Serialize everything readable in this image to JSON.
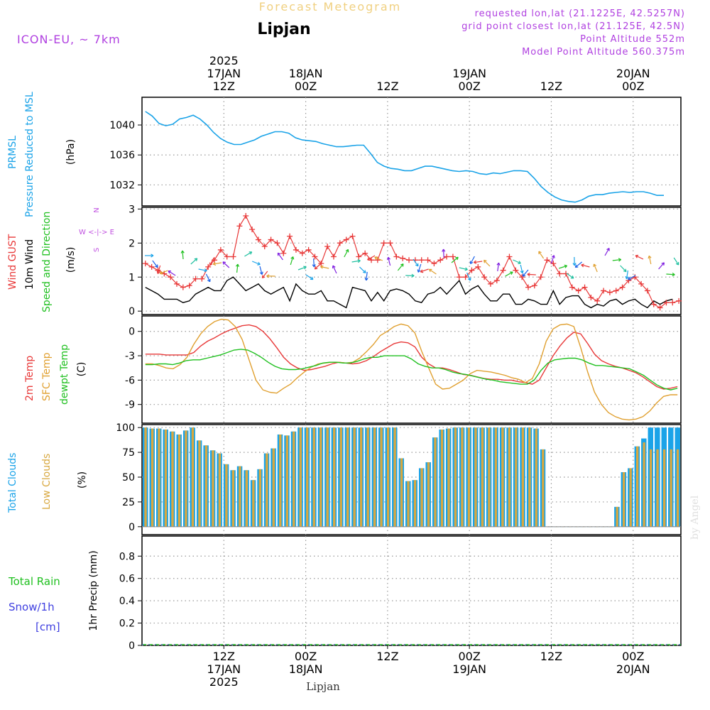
{
  "header": {
    "product": "Forecast Meteogram",
    "location": "Lipjan",
    "model": "ICON-EU, ~ 7km",
    "requested": "requested lon,lat (21.1225E, 42.5257N)",
    "gridpoint": "grid point closest lon,lat (21.125E, 42.5N)",
    "point_alt": "Point Altitude 552m",
    "model_alt": "Model Point Altitude 560.375m",
    "footer_location": "Lipjan",
    "watermark": "by Angel"
  },
  "time_axis": {
    "ticks": [
      {
        "h": 12,
        "top": [
          "2025",
          "17JAN",
          "12Z"
        ],
        "bottom": [
          "12Z",
          "17JAN",
          "2025"
        ]
      },
      {
        "h": 24,
        "top": [
          "18JAN",
          "00Z"
        ],
        "bottom": [
          "00Z",
          "18JAN"
        ]
      },
      {
        "h": 36,
        "top": [
          "12Z"
        ],
        "bottom": [
          "12Z"
        ]
      },
      {
        "h": 48,
        "top": [
          "19JAN",
          "00Z"
        ],
        "bottom": [
          "00Z",
          "19JAN"
        ]
      },
      {
        "h": 60,
        "top": [
          "12Z"
        ],
        "bottom": [
          "12Z"
        ]
      },
      {
        "h": 72,
        "top": [
          "20JAN",
          "00Z"
        ],
        "bottom": [
          "00Z",
          "20JAN"
        ]
      }
    ]
  },
  "panels": {
    "pressure": {
      "labels": [
        "PRMSL",
        "Pressure Reduced to MSL"
      ],
      "unit": "(hPa)",
      "ticks": [
        "1040",
        "1036",
        "1032"
      ]
    },
    "wind": {
      "labels": [
        "Wind GUST",
        "10m Wind",
        "Speed and Direction"
      ],
      "unit": "(m/s)",
      "ticks": [
        "3",
        "2",
        "1",
        "0"
      ],
      "compass": [
        "N",
        "W <-|-> E",
        "S"
      ]
    },
    "temp": {
      "labels": [
        "2m Temp",
        "SFC Temp",
        "dewpt Temp"
      ],
      "unit": "(C)",
      "ticks": [
        "0",
        "-3",
        "-6",
        "-9"
      ]
    },
    "clouds": {
      "labels": [
        "Total Clouds",
        "Low Clouds"
      ],
      "unit": "(%)",
      "ticks": [
        "100",
        "75",
        "50",
        "25",
        "0"
      ]
    },
    "precip": {
      "labels": [
        "Total  Rain",
        "Snow/1h",
        "[cm]"
      ],
      "unit": "1hr Precip (mm)",
      "ticks": [
        "0.8",
        "0.6",
        "0.4",
        "0.2",
        "0"
      ]
    }
  },
  "colors": {
    "pressure": "#1aa3e8",
    "gust": "#e83838",
    "wind10m": "#000000",
    "direction": "#20c020",
    "t2m": "#e83838",
    "tsfc": "#e0a030",
    "dewpt": "#20c020",
    "total_clouds": "#1aa3e8",
    "low_clouds": "#d8a840",
    "rain": "#20c020",
    "snow": "#4040e0",
    "compass": "#c050e0",
    "header_info": "#b040e0",
    "title_faded": "#f0d080"
  },
  "chart_data": [
    {
      "type": "line",
      "title": "PRMSL",
      "ylabel": "Pressure Reduced to MSL (hPa)",
      "ylim": [
        1029.2,
        1043.7
      ],
      "x_start_hour": 0.5,
      "x_step_hours": 1,
      "series": [
        {
          "name": "PRMSL",
          "values": [
            1041.8,
            1041.2,
            1040.2,
            1039.9,
            1040.1,
            1040.8,
            1041.0,
            1041.3,
            1040.8,
            1040.0,
            1039.0,
            1038.2,
            1037.7,
            1037.4,
            1037.4,
            1037.7,
            1038.0,
            1038.5,
            1038.8,
            1039.1,
            1039.1,
            1038.9,
            1038.3,
            1038.0,
            1037.9,
            1037.8,
            1037.5,
            1037.3,
            1037.1,
            1037.1,
            1037.2,
            1037.3,
            1037.3,
            1036.2,
            1035.0,
            1034.5,
            1034.2,
            1034.1,
            1033.9,
            1033.9,
            1034.2,
            1034.5,
            1034.5,
            1034.3,
            1034.1,
            1033.9,
            1033.8,
            1033.9,
            1033.8,
            1033.5,
            1033.4,
            1033.6,
            1033.5,
            1033.7,
            1033.9,
            1033.9,
            1033.8,
            1032.9,
            1031.8,
            1031.0,
            1030.4,
            1030.0,
            1029.8,
            1029.7,
            1030.0,
            1030.5,
            1030.7,
            1030.7,
            1030.9,
            1031.0,
            1031.1,
            1031.0,
            1031.1,
            1031.1,
            1030.9,
            1030.6,
            1030.6
          ]
        }
      ]
    },
    {
      "type": "line",
      "title": "Wind GUST / 10m Wind",
      "ylabel": "(m/s)",
      "ylim": [
        -0.1,
        3.05
      ],
      "x_start_hour": 0.5,
      "x_step_hours": 1,
      "series": [
        {
          "name": "Wind GUST",
          "values": [
            1.4,
            1.3,
            1.2,
            1.1,
            1.0,
            0.8,
            0.7,
            0.75,
            0.95,
            0.95,
            1.3,
            1.5,
            1.8,
            1.6,
            1.6,
            2.5,
            2.8,
            2.4,
            2.1,
            1.9,
            2.1,
            2.0,
            1.7,
            2.2,
            1.8,
            1.7,
            1.8,
            1.6,
            1.4,
            1.9,
            1.6,
            2.0,
            2.1,
            2.2,
            1.6,
            1.7,
            1.5,
            1.5,
            2.0,
            2.0,
            1.6,
            1.55,
            1.5,
            1.5,
            1.5,
            1.5,
            1.4,
            1.5,
            1.6,
            1.6,
            1.0,
            1.0,
            1.2,
            1.3,
            1.0,
            0.8,
            0.9,
            1.2,
            1.6,
            1.2,
            1.0,
            0.7,
            0.75,
            1.0,
            1.5,
            1.4,
            1.1,
            1.1,
            0.7,
            0.6,
            0.7,
            0.4,
            0.3,
            0.6,
            0.55,
            0.6,
            0.7,
            0.9,
            1.0,
            0.8,
            0.6,
            0.2,
            0.1,
            0.25,
            0.25,
            0.3
          ]
        },
        {
          "name": "10m Wind",
          "values": [
            0.7,
            0.6,
            0.5,
            0.35,
            0.35,
            0.35,
            0.25,
            0.3,
            0.5,
            0.6,
            0.7,
            0.6,
            0.6,
            0.9,
            1.0,
            0.8,
            0.6,
            0.7,
            0.8,
            0.6,
            0.5,
            0.6,
            0.7,
            0.3,
            0.8,
            0.6,
            0.5,
            0.5,
            0.6,
            0.3,
            0.3,
            0.2,
            0.1,
            0.7,
            0.65,
            0.6,
            0.3,
            0.55,
            0.3,
            0.6,
            0.65,
            0.6,
            0.5,
            0.3,
            0.25,
            0.5,
            0.55,
            0.7,
            0.5,
            0.7,
            0.9,
            0.5,
            0.65,
            0.75,
            0.5,
            0.3,
            0.3,
            0.5,
            0.5,
            0.2,
            0.2,
            0.35,
            0.3,
            0.2,
            0.2,
            0.6,
            0.2,
            0.4,
            0.45,
            0.45,
            0.2,
            0.1,
            0.2,
            0.15,
            0.3,
            0.35,
            0.2,
            0.3,
            0.35,
            0.2,
            0.1,
            0.3,
            0.2,
            0.3,
            0.35
          ]
        }
      ]
    },
    {
      "type": "line",
      "title": "Temperature",
      "ylabel": "(C)",
      "ylim": [
        -11.3,
        1.9
      ],
      "x_start_hour": 0.5,
      "x_step_hours": 1,
      "series": [
        {
          "name": "2m Temp",
          "values": [
            -2.8,
            -2.8,
            -2.8,
            -2.9,
            -2.9,
            -2.9,
            -2.9,
            -2.6,
            -1.8,
            -1.2,
            -0.8,
            -0.3,
            0.1,
            0.4,
            0.7,
            0.8,
            0.6,
            0.0,
            -0.9,
            -2.0,
            -3.2,
            -4.0,
            -4.5,
            -4.8,
            -4.7,
            -4.5,
            -4.3,
            -4.0,
            -3.8,
            -3.9,
            -4.0,
            -3.9,
            -3.6,
            -3.1,
            -2.5,
            -2.0,
            -1.5,
            -1.3,
            -1.4,
            -1.9,
            -3.2,
            -4.0,
            -4.5,
            -4.5,
            -4.7,
            -5.0,
            -5.3,
            -5.4,
            -5.6,
            -5.8,
            -5.9,
            -5.9,
            -6.0,
            -6.0,
            -6.2,
            -6.3,
            -6.5,
            -6.0,
            -4.5,
            -3.0,
            -1.8,
            -0.8,
            -0.1,
            -0.3,
            -1.5,
            -2.8,
            -3.6,
            -4.0,
            -4.3,
            -4.5,
            -4.8,
            -5.1,
            -5.6,
            -6.2,
            -6.8,
            -7.1,
            -7.0,
            -6.8
          ]
        },
        {
          "name": "SFC Temp",
          "values": [
            -4.0,
            -4.0,
            -4.2,
            -4.5,
            -4.6,
            -4.1,
            -3.2,
            -1.6,
            -0.3,
            0.6,
            1.2,
            1.5,
            1.4,
            0.6,
            -1.0,
            -3.5,
            -6.0,
            -7.2,
            -7.5,
            -7.6,
            -7.0,
            -6.5,
            -5.7,
            -5.0,
            -4.4,
            -4.0,
            -3.9,
            -3.8,
            -3.8,
            -3.9,
            -3.8,
            -3.3,
            -2.5,
            -1.6,
            -0.5,
            0.0,
            0.6,
            0.9,
            0.7,
            -0.2,
            -2.5,
            -4.5,
            -6.5,
            -7.1,
            -7.0,
            -6.5,
            -6.0,
            -5.2,
            -4.8,
            -4.9,
            -5.0,
            -5.2,
            -5.4,
            -5.7,
            -5.9,
            -6.3,
            -5.8,
            -4.0,
            -1.2,
            0.3,
            0.8,
            0.9,
            0.6,
            -2.0,
            -5.0,
            -7.5,
            -9.0,
            -10.0,
            -10.5,
            -10.8,
            -10.9,
            -10.8,
            -10.5,
            -9.8,
            -8.8,
            -8.0,
            -7.8,
            -7.8
          ]
        },
        {
          "name": "dewpt Temp",
          "values": [
            -4.1,
            -4.1,
            -4.0,
            -4.0,
            -4.1,
            -3.9,
            -3.6,
            -3.5,
            -3.5,
            -3.3,
            -3.1,
            -2.9,
            -2.6,
            -2.3,
            -2.2,
            -2.3,
            -2.7,
            -3.2,
            -3.8,
            -4.3,
            -4.6,
            -4.7,
            -4.7,
            -4.6,
            -4.4,
            -4.2,
            -3.9,
            -3.8,
            -3.8,
            -3.9,
            -3.9,
            -3.7,
            -3.4,
            -3.2,
            -3.2,
            -3.0,
            -3.0,
            -3.0,
            -3.0,
            -3.4,
            -4.0,
            -4.3,
            -4.5,
            -4.5,
            -4.7,
            -5.0,
            -5.2,
            -5.3,
            -5.5,
            -5.7,
            -5.9,
            -6.0,
            -6.2,
            -6.3,
            -6.4,
            -6.5,
            -6.5,
            -6.0,
            -4.8,
            -3.9,
            -3.5,
            -3.4,
            -3.3,
            -3.3,
            -3.5,
            -3.9,
            -4.2,
            -4.2,
            -4.3,
            -4.4,
            -4.5,
            -4.6,
            -5.0,
            -5.4,
            -6.0,
            -6.6,
            -7.0,
            -7.2,
            -7.0
          ]
        }
      ]
    },
    {
      "type": "bar",
      "title": "Clouds",
      "ylabel": "(%)",
      "ylim": [
        -8,
        103
      ],
      "x_start_hour": 0.5,
      "x_step_hours": 1,
      "series": [
        {
          "name": "Total Clouds",
          "values": [
            100,
            99,
            99,
            98,
            96,
            93,
            97,
            100,
            87,
            82,
            77,
            74,
            63,
            57,
            61,
            57,
            47,
            58,
            74,
            79,
            93,
            92,
            96,
            100,
            100,
            100,
            100,
            100,
            100,
            100,
            100,
            100,
            100,
            100,
            100,
            100,
            100,
            100,
            69,
            46,
            47,
            59,
            65,
            90,
            98,
            99,
            100,
            100,
            100,
            100,
            100,
            100,
            100,
            100,
            100,
            100,
            100,
            100,
            99,
            78,
            0,
            0,
            0,
            0,
            0,
            0,
            0,
            0,
            0,
            0,
            20,
            55,
            59,
            81,
            89,
            100,
            100,
            100,
            100,
            100
          ]
        },
        {
          "name": "Low Clouds",
          "values": [
            100,
            99,
            99,
            98,
            96,
            93,
            97,
            100,
            87,
            82,
            77,
            74,
            63,
            57,
            61,
            57,
            47,
            58,
            74,
            79,
            93,
            92,
            96,
            100,
            100,
            100,
            100,
            100,
            100,
            100,
            100,
            100,
            100,
            100,
            100,
            100,
            100,
            100,
            69,
            46,
            47,
            59,
            65,
            90,
            98,
            99,
            100,
            100,
            100,
            100,
            100,
            100,
            100,
            100,
            100,
            100,
            100,
            100,
            99,
            78,
            0,
            0,
            0,
            0,
            0,
            0,
            0,
            0,
            0,
            0,
            20,
            55,
            59,
            81,
            85,
            78,
            78,
            78,
            78,
            78
          ]
        }
      ]
    },
    {
      "type": "line",
      "title": "1hr Precip",
      "ylabel": "1hr Precip (mm)",
      "ylim": [
        0,
        0.98
      ],
      "series": [
        {
          "name": "Total Rain",
          "values": [
            0,
            0
          ]
        },
        {
          "name": "Snow/1h",
          "values": [
            0,
            0
          ]
        }
      ]
    }
  ]
}
